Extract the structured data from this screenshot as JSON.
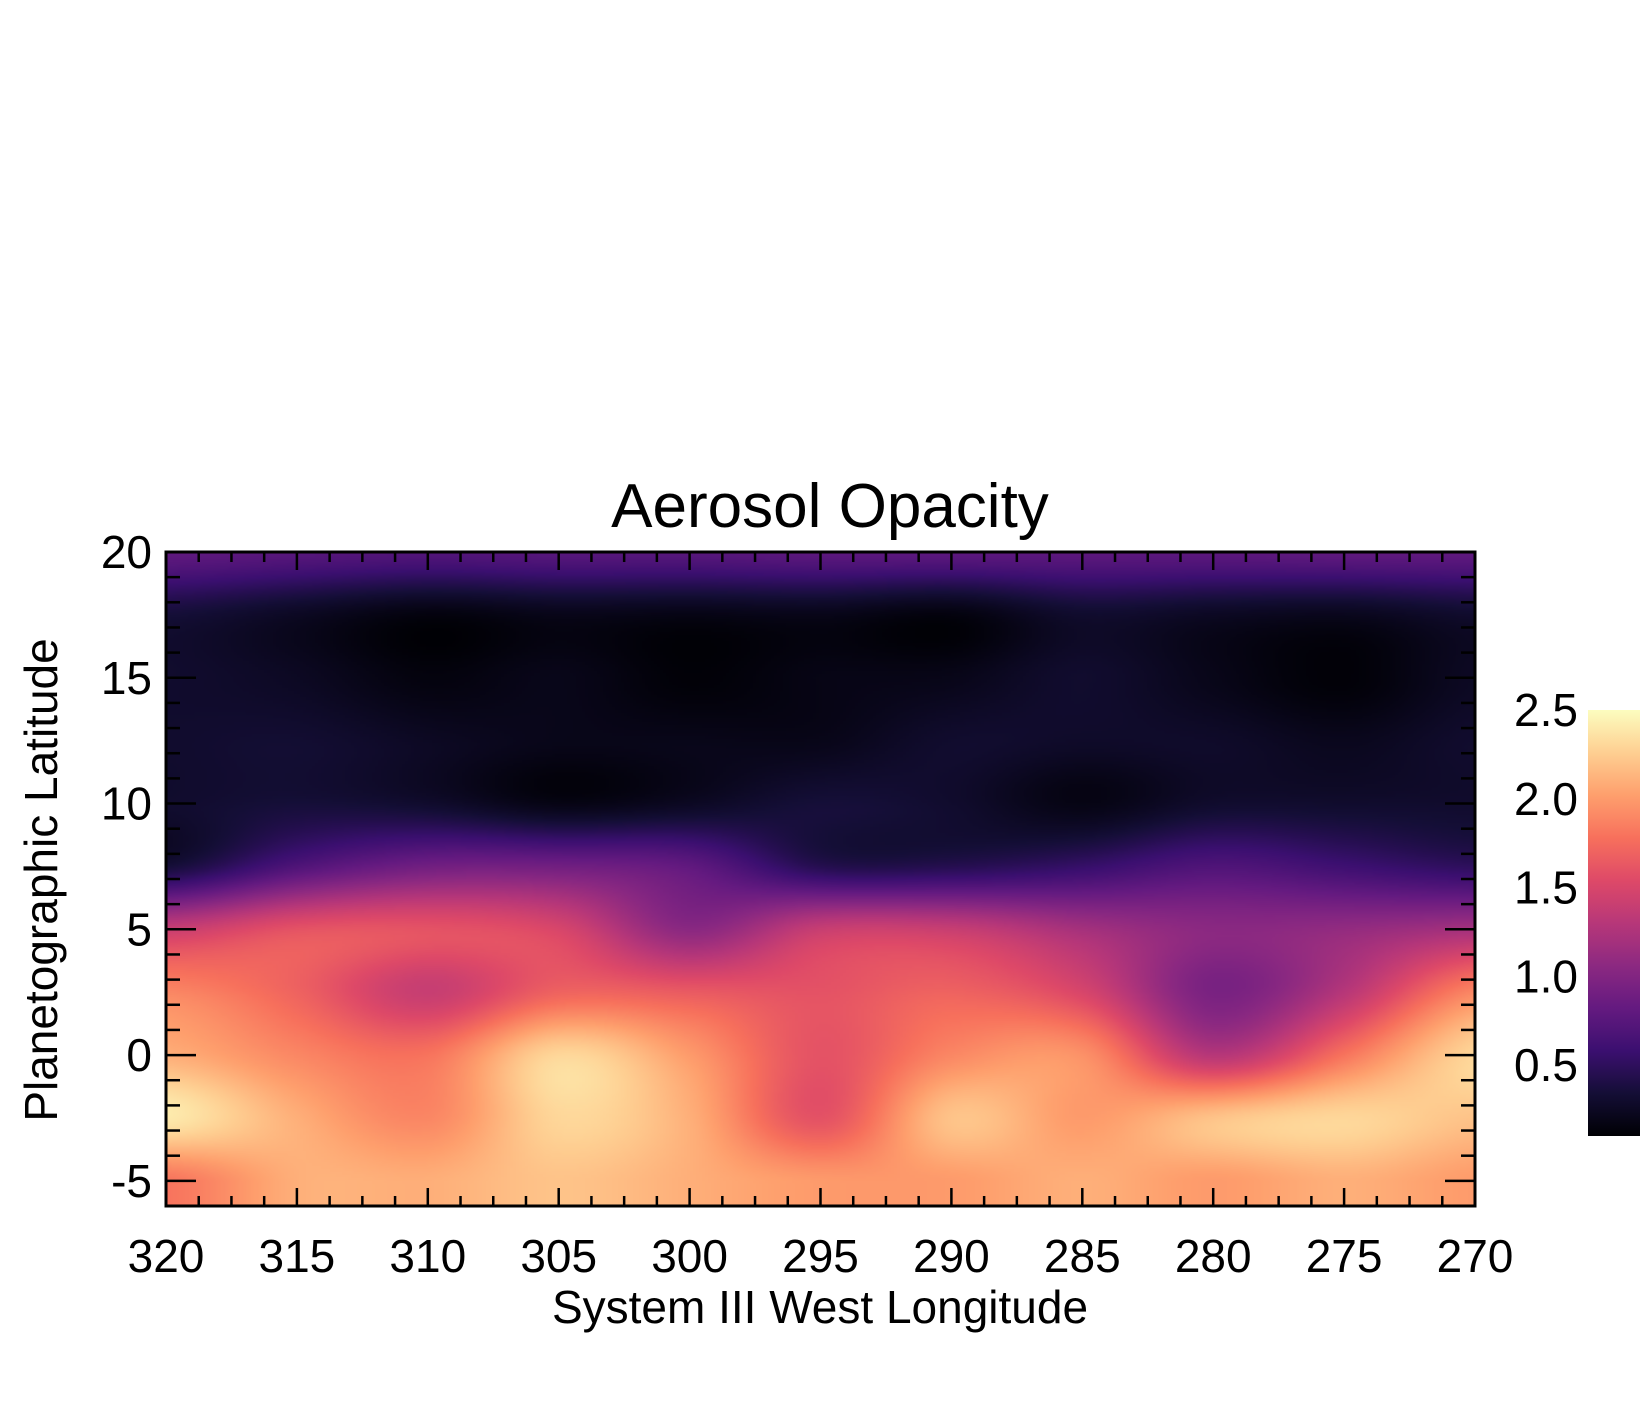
{
  "chart_data": {
    "type": "heatmap",
    "title": "Aerosol Opacity",
    "xlabel": "System III West Longitude",
    "ylabel": "Planetographic Latitude",
    "xlim": [
      320,
      270
    ],
    "ylim": [
      -6,
      20
    ],
    "x_ticks": [
      320,
      315,
      310,
      305,
      300,
      295,
      290,
      285,
      280,
      275,
      270
    ],
    "x_tick_labels": [
      "320",
      "315",
      "310",
      "305",
      "300",
      "295",
      "290",
      "285",
      "280",
      "275",
      "270"
    ],
    "y_ticks": [
      20,
      15,
      10,
      5,
      0,
      -5
    ],
    "y_tick_labels": [
      "20",
      "15",
      "10",
      "5",
      "0",
      "-5"
    ],
    "x_minor_step": 1.25,
    "y_minor_step": 1,
    "colormap": "magma",
    "colorbar": {
      "range": [
        0.1,
        2.5
      ],
      "ticks": [
        2.5,
        2.0,
        1.5,
        1.0,
        0.5
      ],
      "tick_labels": [
        "2.5",
        "2.0",
        "1.5",
        "1.0",
        "0.5"
      ],
      "placement": "right"
    },
    "grid": false,
    "longitudes": [
      320,
      315,
      310,
      305,
      300,
      295,
      290,
      285,
      280,
      275,
      270
    ],
    "latitudes": [
      20,
      17.5,
      15,
      12.5,
      10,
      7.5,
      5,
      2.5,
      0,
      -2.5,
      -5
    ],
    "values": [
      [
        0.8,
        0.75,
        0.72,
        0.75,
        0.75,
        0.78,
        0.78,
        0.78,
        0.78,
        0.8,
        0.8
      ],
      [
        0.35,
        0.25,
        0.15,
        0.2,
        0.18,
        0.2,
        0.15,
        0.3,
        0.25,
        0.22,
        0.3
      ],
      [
        0.3,
        0.25,
        0.15,
        0.2,
        0.12,
        0.18,
        0.2,
        0.3,
        0.2,
        0.12,
        0.25
      ],
      [
        0.3,
        0.32,
        0.25,
        0.2,
        0.2,
        0.2,
        0.3,
        0.28,
        0.28,
        0.22,
        0.3
      ],
      [
        0.3,
        0.35,
        0.3,
        0.18,
        0.25,
        0.35,
        0.3,
        0.18,
        0.3,
        0.3,
        0.3
      ],
      [
        0.35,
        0.7,
        0.9,
        0.9,
        0.8,
        0.45,
        0.45,
        0.55,
        0.7,
        0.6,
        0.5
      ],
      [
        1.4,
        1.6,
        1.6,
        1.5,
        1.05,
        1.4,
        1.4,
        1.2,
        1.05,
        1.1,
        1.2
      ],
      [
        1.9,
        1.7,
        1.4,
        1.7,
        1.65,
        1.6,
        1.7,
        1.5,
        0.95,
        1.3,
        1.9
      ],
      [
        2.1,
        1.9,
        1.8,
        2.3,
        2.0,
        1.6,
        1.9,
        1.95,
        1.3,
        1.8,
        2.3
      ],
      [
        2.4,
        2.1,
        1.9,
        2.3,
        2.1,
        1.6,
        2.2,
        2.0,
        2.2,
        2.3,
        2.2
      ],
      [
        1.8,
        2.1,
        2.1,
        2.2,
        2.1,
        2.0,
        2.0,
        2.1,
        2.0,
        2.1,
        2.0
      ]
    ]
  }
}
